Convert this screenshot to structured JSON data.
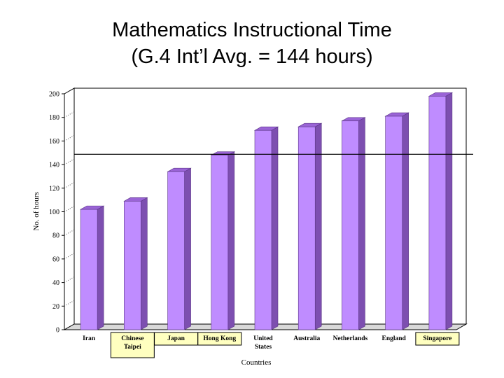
{
  "title": {
    "line1": "Mathematics Instructional Time",
    "line2": "(G.4 Int’l Avg. = 144 hours)"
  },
  "chart_data": {
    "type": "bar",
    "title": "Mathematics Instructional Time (G.4 Int’l Avg. = 144 hours)",
    "xlabel": "Countries",
    "ylabel": "No. of hours",
    "ylim": [
      0,
      200
    ],
    "yticks": [
      0,
      20,
      40,
      60,
      80,
      100,
      120,
      140,
      160,
      180,
      200
    ],
    "reference_line": 144,
    "categories": [
      [
        "Iran"
      ],
      [
        "Chinese",
        "Taipei"
      ],
      [
        "Japan"
      ],
      [
        "Hong Kong"
      ],
      [
        "United",
        "States"
      ],
      [
        "Australia"
      ],
      [
        "Netherlands"
      ],
      [
        "England"
      ],
      [
        "Singapore"
      ]
    ],
    "highlighted": [
      false,
      true,
      true,
      true,
      false,
      false,
      false,
      false,
      true
    ],
    "values": [
      102,
      109,
      134,
      148,
      169,
      172,
      177,
      181,
      198
    ],
    "colors": {
      "bar_front": "#bf8cff",
      "bar_side": "#7d4fb0",
      "bar_top": "#9a64d6",
      "highlight": "#ffffc0"
    },
    "grid": false,
    "legend": "none"
  }
}
